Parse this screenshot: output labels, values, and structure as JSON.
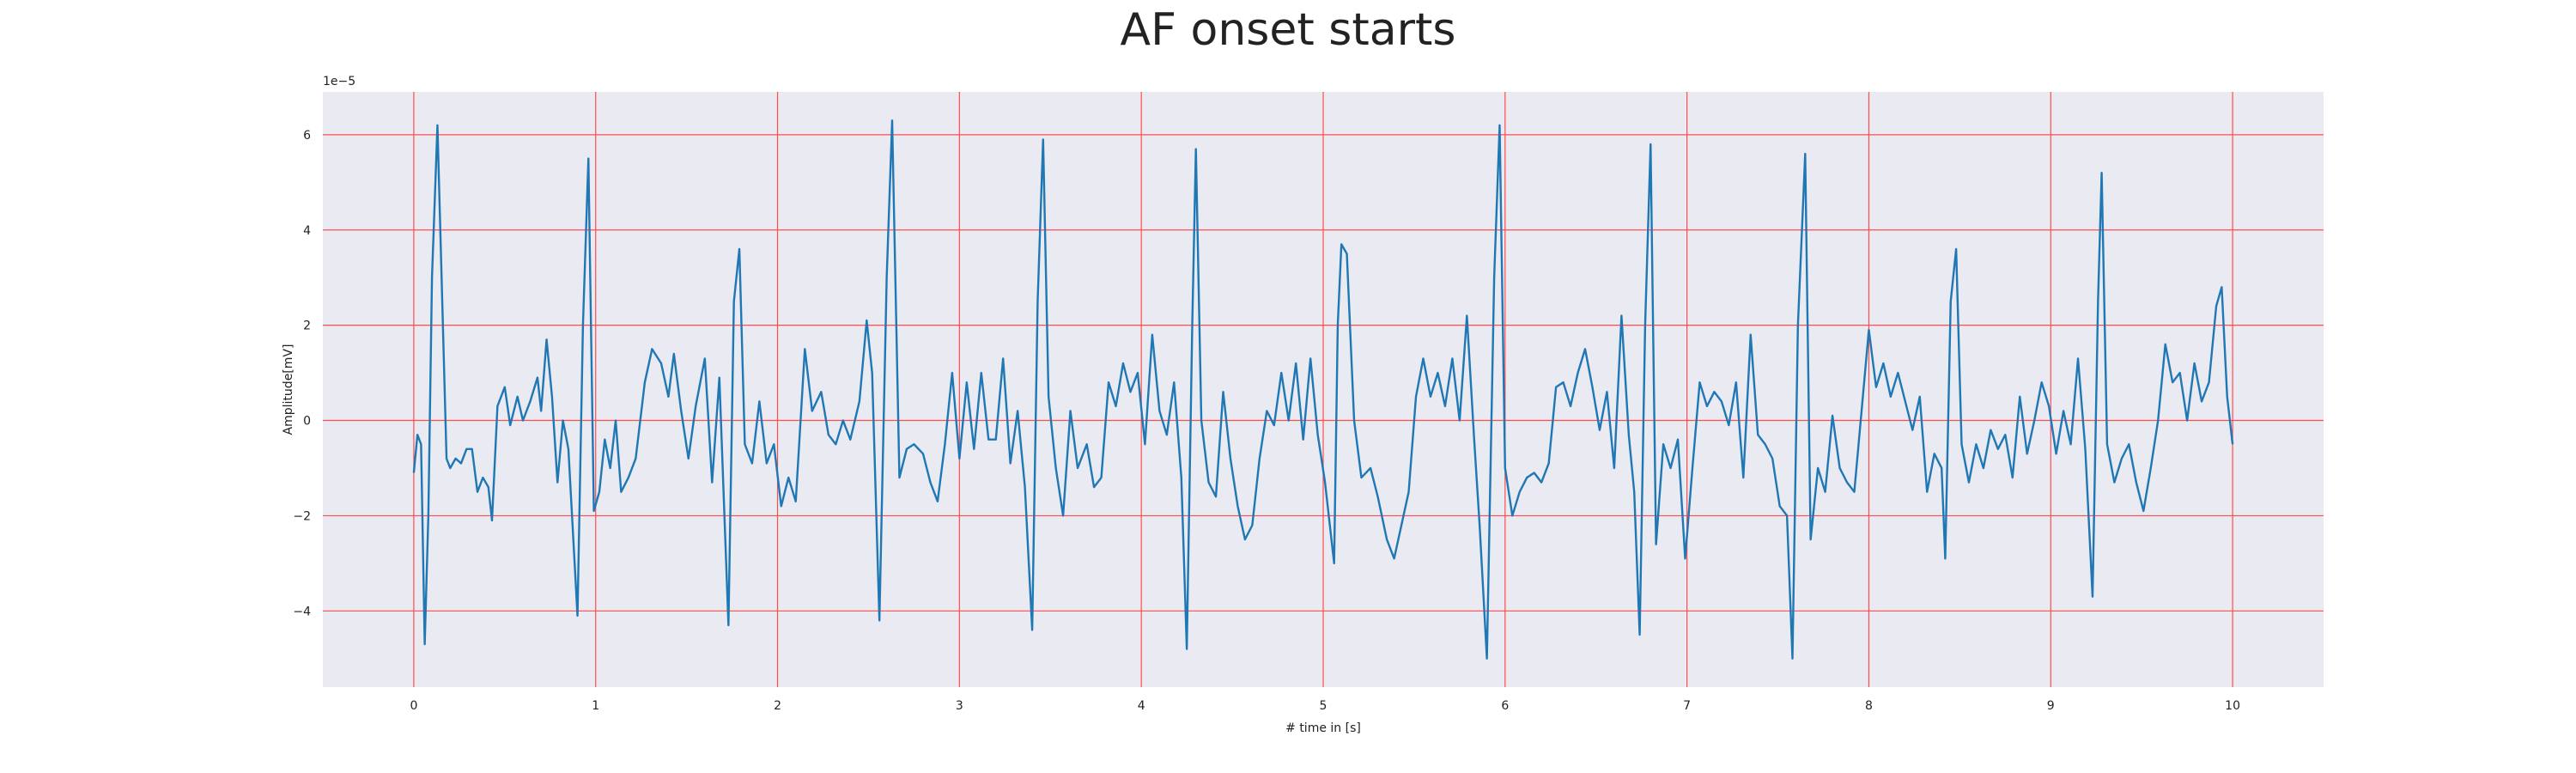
{
  "chart_data": {
    "type": "line",
    "title": "AF onset starts",
    "xlabel": "# time in [s]",
    "ylabel": "Amplitude[mV]",
    "y_offset_label": "1e−5",
    "xlim": [
      -0.5,
      10.5
    ],
    "ylim": [
      -5.6,
      6.9
    ],
    "xticks": [
      0,
      1,
      2,
      3,
      4,
      5,
      6,
      7,
      8,
      9,
      10
    ],
    "yticks": [
      {
        "value": -4,
        "label": "−4"
      },
      {
        "value": -2,
        "label": "−2"
      },
      0,
      2,
      4,
      6
    ],
    "grid": true,
    "grid_color": "#ff4d4d",
    "background": "#eaeaf2",
    "series": [
      {
        "color": "#1f77b4",
        "x": [
          0.0,
          0.02,
          0.04,
          0.06,
          0.08,
          0.1,
          0.13,
          0.16,
          0.18,
          0.2,
          0.23,
          0.26,
          0.29,
          0.32,
          0.35,
          0.38,
          0.41,
          0.43,
          0.46,
          0.5,
          0.53,
          0.57,
          0.6,
          0.64,
          0.68,
          0.7,
          0.73,
          0.76,
          0.79,
          0.82,
          0.85,
          0.9,
          0.93,
          0.96,
          0.99,
          1.02,
          1.05,
          1.08,
          1.11,
          1.14,
          1.18,
          1.22,
          1.27,
          1.31,
          1.36,
          1.4,
          1.43,
          1.47,
          1.51,
          1.55,
          1.6,
          1.64,
          1.68,
          1.73,
          1.76,
          1.79,
          1.82,
          1.86,
          1.9,
          1.94,
          1.98,
          2.02,
          2.06,
          2.1,
          2.15,
          2.19,
          2.24,
          2.28,
          2.32,
          2.36,
          2.4,
          2.45,
          2.49,
          2.52,
          2.56,
          2.6,
          2.63,
          2.67,
          2.71,
          2.75,
          2.8,
          2.84,
          2.88,
          2.92,
          2.96,
          3.0,
          3.04,
          3.08,
          3.12,
          3.16,
          3.2,
          3.24,
          3.28,
          3.32,
          3.36,
          3.4,
          3.43,
          3.46,
          3.49,
          3.53,
          3.57,
          3.61,
          3.65,
          3.7,
          3.74,
          3.78,
          3.82,
          3.86,
          3.9,
          3.94,
          3.98,
          4.02,
          4.06,
          4.1,
          4.14,
          4.18,
          4.22,
          4.25,
          4.28,
          4.3,
          4.33,
          4.37,
          4.41,
          4.45,
          4.49,
          4.53,
          4.57,
          4.61,
          4.65,
          4.69,
          4.73,
          4.77,
          4.81,
          4.85,
          4.89,
          4.93,
          4.97,
          5.01,
          5.06,
          5.08,
          5.1,
          5.13,
          5.17,
          5.21,
          5.26,
          5.3,
          5.35,
          5.39,
          5.43,
          5.47,
          5.51,
          5.55,
          5.59,
          5.63,
          5.67,
          5.71,
          5.75,
          5.79,
          5.83,
          5.86,
          5.9,
          5.94,
          5.97,
          6.0,
          6.04,
          6.08,
          6.12,
          6.16,
          6.2,
          6.24,
          6.28,
          6.32,
          6.36,
          6.4,
          6.44,
          6.48,
          6.52,
          6.56,
          6.6,
          6.64,
          6.68,
          6.71,
          6.74,
          6.77,
          6.8,
          6.83,
          6.87,
          6.91,
          6.95,
          6.99,
          7.03,
          7.07,
          7.11,
          7.15,
          7.19,
          7.23,
          7.27,
          7.31,
          7.35,
          7.39,
          7.43,
          7.47,
          7.51,
          7.55,
          7.58,
          7.61,
          7.65,
          7.68,
          7.72,
          7.76,
          7.8,
          7.84,
          7.88,
          7.92,
          7.96,
          8.0,
          8.04,
          8.08,
          8.12,
          8.16,
          8.2,
          8.24,
          8.28,
          8.32,
          8.36,
          8.4,
          8.42,
          8.45,
          8.48,
          8.51,
          8.55,
          8.59,
          8.63,
          8.67,
          8.71,
          8.75,
          8.79,
          8.83,
          8.87,
          8.91,
          8.95,
          8.99,
          9.03,
          9.07,
          9.11,
          9.15,
          9.19,
          9.23,
          9.26,
          9.28,
          9.31,
          9.35,
          9.39,
          9.43,
          9.47,
          9.51,
          9.55,
          9.59,
          9.63,
          9.67,
          9.71,
          9.75,
          9.79,
          9.83,
          9.87,
          9.91,
          9.94,
          9.97,
          10.0
        ],
        "values": [
          -1.1,
          -0.3,
          -0.5,
          -4.7,
          -2,
          3,
          6.2,
          2,
          -0.8,
          -1.0,
          -0.8,
          -0.9,
          -0.6,
          -0.6,
          -1.5,
          -1.2,
          -1.4,
          -2.1,
          0.3,
          0.7,
          -0.1,
          0.5,
          0.0,
          0.4,
          0.9,
          0.2,
          1.7,
          0.5,
          -1.3,
          0.0,
          -0.6,
          -4.1,
          2.0,
          5.5,
          -1.9,
          -1.5,
          -0.4,
          -1.0,
          0.0,
          -1.5,
          -1.2,
          -0.8,
          0.8,
          1.5,
          1.2,
          0.5,
          1.4,
          0.2,
          -0.8,
          0.3,
          1.3,
          -1.3,
          0.9,
          -4.3,
          2.5,
          3.6,
          -0.5,
          -0.9,
          0.4,
          -0.9,
          -0.5,
          -1.8,
          -1.2,
          -1.7,
          1.5,
          0.2,
          0.6,
          -0.3,
          -0.5,
          0.0,
          -0.4,
          0.4,
          2.1,
          1.0,
          -4.2,
          3.0,
          6.3,
          -1.2,
          -0.6,
          -0.5,
          -0.7,
          -1.3,
          -1.7,
          -0.5,
          1.0,
          -0.8,
          0.8,
          -0.6,
          1.0,
          -0.4,
          -0.4,
          1.3,
          -0.9,
          0.2,
          -1.4,
          -4.4,
          2.5,
          5.9,
          0.5,
          -1.0,
          -2.0,
          0.2,
          -1.0,
          -0.5,
          -1.4,
          -1.2,
          0.8,
          0.3,
          1.2,
          0.6,
          1.0,
          -0.5,
          1.8,
          0.2,
          -0.3,
          0.8,
          -1.2,
          -4.8,
          2.0,
          5.7,
          0.0,
          -1.3,
          -1.6,
          0.6,
          -0.8,
          -1.8,
          -2.5,
          -2.2,
          -0.8,
          0.2,
          -0.1,
          1.0,
          0.0,
          1.2,
          -0.4,
          1.3,
          -0.3,
          -1.3,
          -3.0,
          2.0,
          3.7,
          3.5,
          0.0,
          -1.2,
          -1.0,
          -1.6,
          -2.5,
          -2.9,
          -2.2,
          -1.5,
          0.5,
          1.3,
          0.5,
          1.0,
          0.3,
          1.3,
          0.0,
          2.2,
          -0.4,
          -2.2,
          -5.0,
          3.0,
          6.2,
          -1.0,
          -2.0,
          -1.5,
          -1.2,
          -1.1,
          -1.3,
          -0.9,
          0.7,
          0.8,
          0.3,
          1.0,
          1.5,
          0.7,
          -0.2,
          0.6,
          -1.0,
          2.2,
          -0.3,
          -1.5,
          -4.5,
          2.0,
          5.8,
          -2.6,
          -0.5,
          -1.0,
          -0.4,
          -2.9,
          -1.0,
          0.8,
          0.3,
          0.6,
          0.4,
          -0.1,
          0.8,
          -1.2,
          1.8,
          -0.3,
          -0.5,
          -0.8,
          -1.8,
          -2.0,
          -5.0,
          2.0,
          5.6,
          -2.5,
          -1.0,
          -1.5,
          0.1,
          -1.0,
          -1.3,
          -1.5,
          0.2,
          1.9,
          0.7,
          1.2,
          0.5,
          1.0,
          0.4,
          -0.2,
          0.5,
          -1.5,
          -0.7,
          -1.0,
          -2.9,
          2.5,
          3.6,
          -0.5,
          -1.3,
          -0.5,
          -1.0,
          -0.2,
          -0.6,
          -0.3,
          -1.2,
          0.5,
          -0.7,
          0.0,
          0.8,
          0.3,
          -0.7,
          0.2,
          -0.5,
          1.3,
          -0.6,
          -3.7,
          2.5,
          5.2,
          -0.5,
          -1.3,
          -0.8,
          -0.5,
          -1.3,
          -1.9,
          -1.0,
          0.0,
          1.6,
          0.8,
          1.0,
          0.0,
          1.2,
          0.4,
          0.8,
          2.4,
          2.8,
          0.5,
          -0.5
        ]
      }
    ]
  }
}
